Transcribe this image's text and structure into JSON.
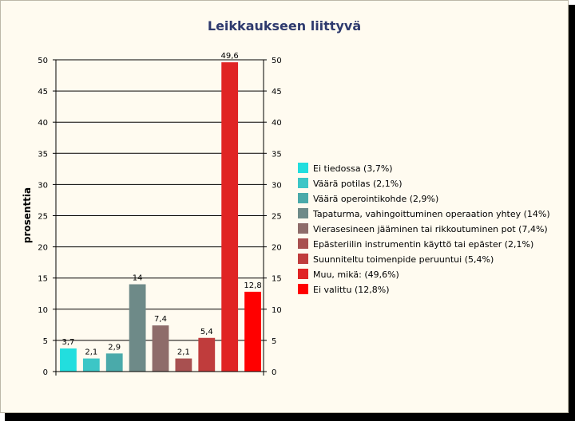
{
  "chart_data": {
    "type": "bar",
    "title": "Leikkaukseen liittyvä",
    "ylabel": "prosenttia",
    "xlabel": "",
    "ylim": [
      0,
      50
    ],
    "yticks": [
      0,
      5,
      10,
      15,
      20,
      25,
      30,
      35,
      40,
      45,
      50
    ],
    "secondary_y_axis": true,
    "grid": true,
    "legend_position": "right",
    "series": [
      {
        "name": "Ei tiedossa (3,7%)",
        "value": 3.7,
        "label": "3,7",
        "color": "#22dede"
      },
      {
        "name": "Väärä potilas (2,1%)",
        "value": 2.1,
        "label": "2,1",
        "color": "#3cc6c6"
      },
      {
        "name": "Väärä operointikohde (2,9%)",
        "value": 2.9,
        "label": "2,9",
        "color": "#4aaaaa"
      },
      {
        "name": "Tapaturma, vahingoittuminen operaation yhtey (14%)",
        "value": 14,
        "label": "14",
        "color": "#6e8a88"
      },
      {
        "name": "Vierasesineen jääminen tai rikkoutuminen pot (7,4%)",
        "value": 7.4,
        "label": "7,4",
        "color": "#8e6c6a"
      },
      {
        "name": "Epästeriilin instrumentin käyttö tai epäster (2,1%)",
        "value": 2.1,
        "label": "2,1",
        "color": "#a85050"
      },
      {
        "name": "Suunniteltu toimenpide peruuntui (5,4%)",
        "value": 5.4,
        "label": "5,4",
        "color": "#c03c3c"
      },
      {
        "name": "Muu, mikä: (49,6%)",
        "value": 49.6,
        "label": "49,6",
        "color": "#e02424"
      },
      {
        "name": "Ei valittu (12,8%)",
        "value": 12.8,
        "label": "12,8",
        "color": "#ff0000"
      }
    ]
  }
}
